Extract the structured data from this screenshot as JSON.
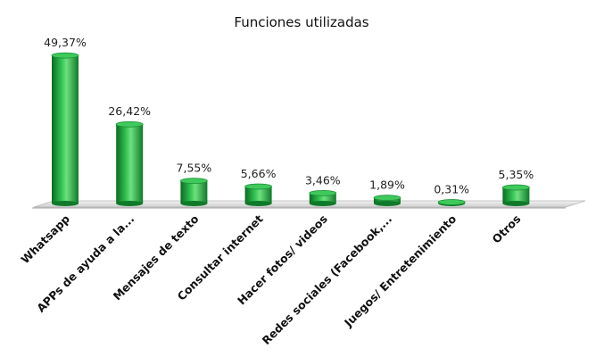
{
  "chart_data": {
    "type": "bar",
    "title": "Funciones utilizadas",
    "categories": [
      "Whatsapp",
      "APPs de ayuda a la...",
      "Mensajes de texto",
      "Consultar internet",
      "Hacer fotos/ videos",
      "Redes sociales (Facebook,...",
      "Juegos/ Entretenimiento",
      "Otros"
    ],
    "values": [
      49.37,
      26.42,
      7.55,
      5.66,
      3.46,
      1.89,
      0.31,
      5.35
    ],
    "value_labels": [
      "49,37%",
      "26,42%",
      "7,55%",
      "5,66%",
      "3,46%",
      "1,89%",
      "0,31%",
      "5,35%"
    ],
    "ylim": [
      0,
      50
    ],
    "grid": false,
    "bar_style": "3d-cylinder",
    "colors": {
      "bar": "#1ea53c",
      "bar_dark": "#0c6a22",
      "bar_light": "#7fe08f",
      "floor": "#d9d9d9"
    }
  }
}
